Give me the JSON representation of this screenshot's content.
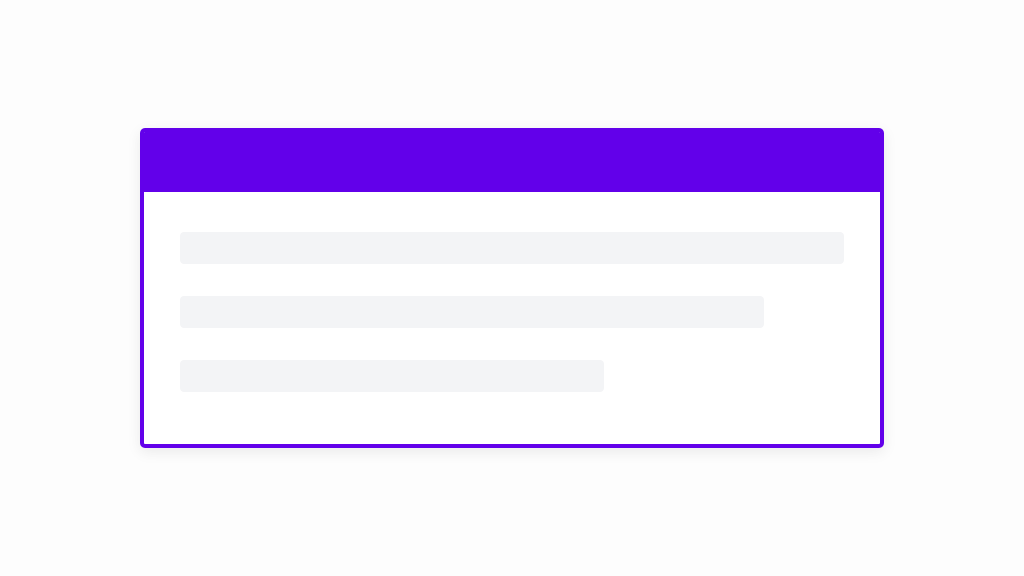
{
  "card": {
    "accent_color": "#6200ea",
    "placeholder_color": "#f3f4f6",
    "header": {
      "type": "colored-header"
    },
    "skeleton_lines": [
      {
        "name": "skeleton-line-1"
      },
      {
        "name": "skeleton-line-2"
      },
      {
        "name": "skeleton-line-3"
      }
    ]
  }
}
